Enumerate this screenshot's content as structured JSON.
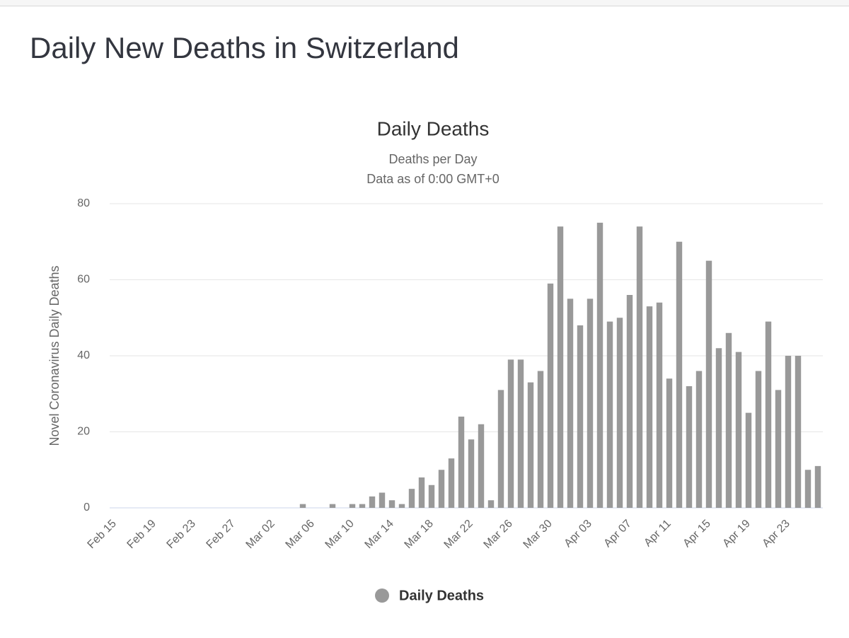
{
  "page_title": "Daily New Deaths in Switzerland",
  "chart_data": {
    "type": "bar",
    "title": "Daily Deaths",
    "subtitle": [
      "Deaths per Day",
      "Data as of 0:00 GMT+0"
    ],
    "y_label": "Novel Coronavirus Daily Deaths",
    "categories": [
      "Feb 15",
      null,
      null,
      null,
      "Feb 19",
      null,
      null,
      null,
      "Feb 23",
      null,
      null,
      null,
      "Feb 27",
      null,
      null,
      null,
      "Mar 02",
      null,
      null,
      null,
      "Mar 06",
      null,
      null,
      null,
      "Mar 10",
      null,
      null,
      null,
      "Mar 14",
      null,
      null,
      null,
      "Mar 18",
      null,
      null,
      null,
      "Mar 22",
      null,
      null,
      null,
      "Mar 26",
      null,
      null,
      null,
      "Mar 30",
      null,
      null,
      null,
      "Apr 03",
      null,
      null,
      null,
      "Apr 07",
      null,
      null,
      null,
      "Apr 11",
      null,
      null,
      null,
      "Apr 15",
      null,
      null,
      null,
      "Apr 19",
      null,
      null,
      null,
      "Apr 23",
      null,
      null,
      null
    ],
    "series": [
      {
        "name": "Daily Deaths",
        "color": "#999999",
        "values": [
          0,
          0,
          0,
          0,
          0,
          0,
          0,
          0,
          0,
          0,
          0,
          0,
          0,
          0,
          0,
          0,
          0,
          0,
          0,
          1,
          0,
          0,
          1,
          0,
          1,
          1,
          3,
          4,
          2,
          1,
          5,
          8,
          6,
          10,
          13,
          24,
          18,
          22,
          2,
          31,
          39,
          39,
          33,
          36,
          59,
          74,
          55,
          48,
          55,
          75,
          49,
          50,
          56,
          74,
          53,
          54,
          34,
          70,
          32,
          36,
          65,
          42,
          46,
          41,
          25,
          36,
          49,
          31,
          40,
          40,
          10,
          11
        ]
      }
    ],
    "ylim": [
      0,
      80
    ],
    "yticks": [
      0,
      20,
      40,
      60,
      80
    ],
    "grid": true
  }
}
